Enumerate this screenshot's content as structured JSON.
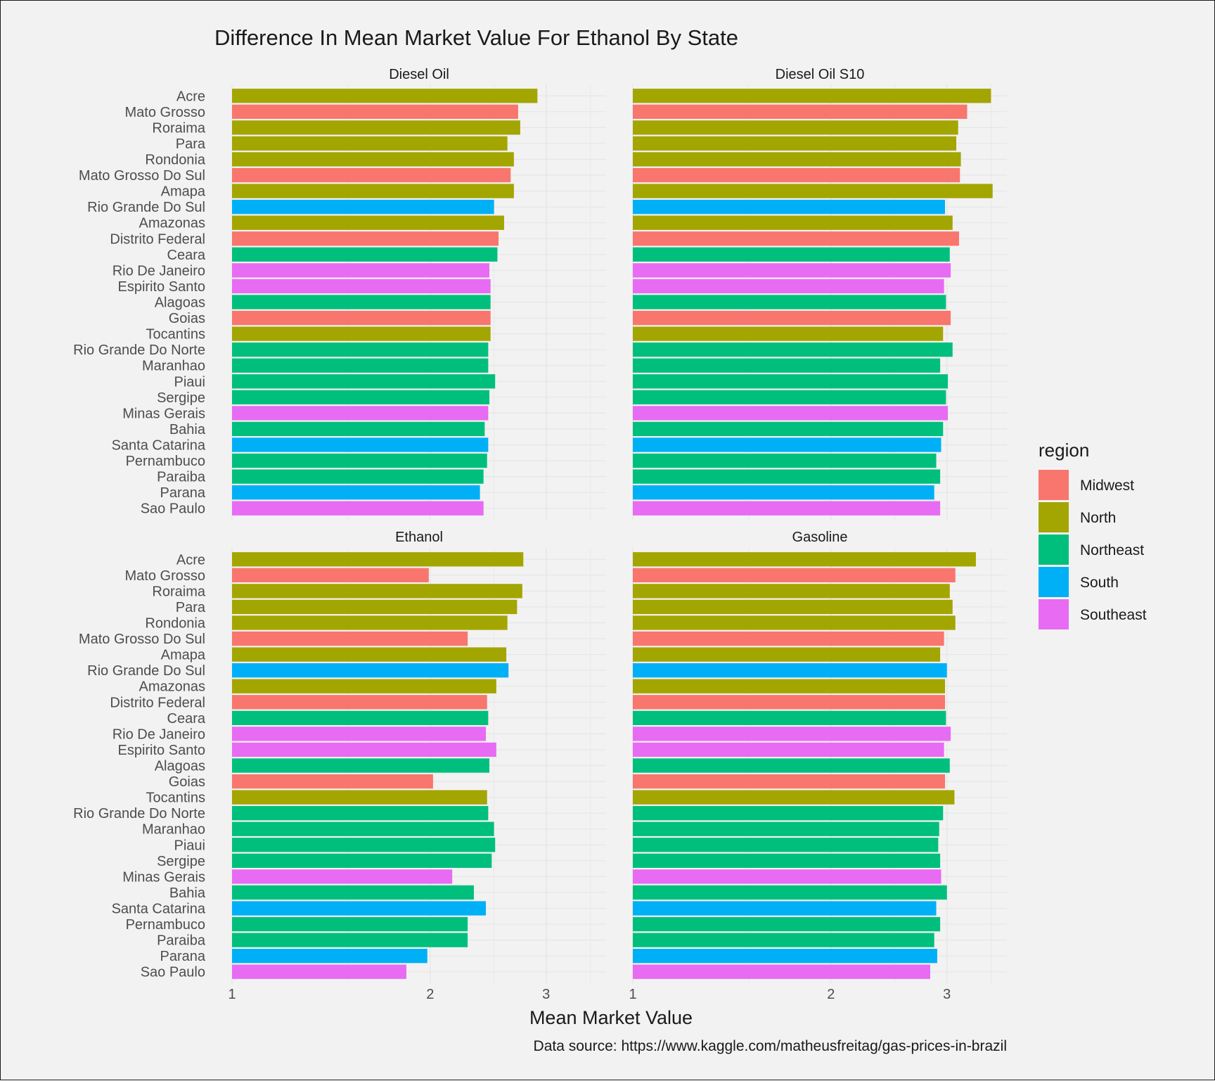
{
  "chart_data": {
    "type": "bar",
    "orientation": "horizontal",
    "title": "Difference In Mean Market Value For Ethanol By State",
    "xlabel": "Mean Market Value",
    "caption": "Data source: https://www.kaggle.com/matheusfreitag/gas-prices-in-brazil",
    "x_scale": "log10",
    "xlim": [
      1,
      3.7
    ],
    "xticks": [
      1,
      2,
      3
    ],
    "grid": true,
    "legend": {
      "title": "region",
      "position": "right",
      "entries": [
        {
          "label": "Midwest",
          "color": "#F8766D"
        },
        {
          "label": "North",
          "color": "#A3A500"
        },
        {
          "label": "Northeast",
          "color": "#00BF7D"
        },
        {
          "label": "South",
          "color": "#00B0F6"
        },
        {
          "label": "Southeast",
          "color": "#E76BF3"
        }
      ]
    },
    "categories": [
      "Acre",
      "Mato Grosso",
      "Roraima",
      "Para",
      "Rondonia",
      "Mato Grosso Do Sul",
      "Amapa",
      "Rio Grande Do Sul",
      "Amazonas",
      "Distrito Federal",
      "Ceara",
      "Rio De Janeiro",
      "Espirito Santo",
      "Alagoas",
      "Goias",
      "Tocantins",
      "Rio Grande Do Norte",
      "Maranhao",
      "Piaui",
      "Sergipe",
      "Minas Gerais",
      "Bahia",
      "Santa Catarina",
      "Pernambuco",
      "Paraiba",
      "Parana",
      "Sao Paulo"
    ],
    "category_region": [
      "North",
      "Midwest",
      "North",
      "North",
      "North",
      "Midwest",
      "North",
      "South",
      "North",
      "Midwest",
      "Northeast",
      "Southeast",
      "Southeast",
      "Northeast",
      "Midwest",
      "North",
      "Northeast",
      "Northeast",
      "Northeast",
      "Northeast",
      "Southeast",
      "Northeast",
      "South",
      "Northeast",
      "Northeast",
      "South",
      "Southeast"
    ],
    "panels": [
      {
        "name": "Diesel Oil",
        "values": [
          2.91,
          2.72,
          2.74,
          2.62,
          2.68,
          2.65,
          2.68,
          2.5,
          2.59,
          2.54,
          2.53,
          2.46,
          2.47,
          2.47,
          2.47,
          2.47,
          2.45,
          2.45,
          2.51,
          2.46,
          2.45,
          2.42,
          2.45,
          2.44,
          2.41,
          2.38,
          2.41
        ]
      },
      {
        "name": "Diesel Oil S10",
        "values": [
          3.5,
          3.22,
          3.12,
          3.1,
          3.15,
          3.14,
          3.52,
          2.98,
          3.06,
          3.13,
          3.03,
          3.04,
          2.97,
          2.99,
          3.04,
          2.96,
          3.06,
          2.93,
          3.01,
          2.99,
          3.01,
          2.96,
          2.94,
          2.89,
          2.93,
          2.87,
          2.93
        ]
      },
      {
        "name": "Ethanol",
        "values": [
          2.77,
          1.99,
          2.76,
          2.71,
          2.62,
          2.28,
          2.61,
          2.63,
          2.52,
          2.44,
          2.45,
          2.43,
          2.52,
          2.46,
          2.02,
          2.44,
          2.45,
          2.5,
          2.51,
          2.48,
          2.16,
          2.33,
          2.43,
          2.28,
          2.28,
          1.98,
          1.84
        ]
      },
      {
        "name": "Gasoline",
        "values": [
          3.32,
          3.09,
          3.03,
          3.06,
          3.09,
          2.97,
          2.93,
          3.0,
          2.98,
          2.98,
          2.99,
          3.04,
          2.97,
          3.03,
          2.98,
          3.08,
          2.96,
          2.92,
          2.91,
          2.93,
          2.94,
          3.0,
          2.89,
          2.93,
          2.87,
          2.9,
          2.83
        ]
      }
    ]
  }
}
